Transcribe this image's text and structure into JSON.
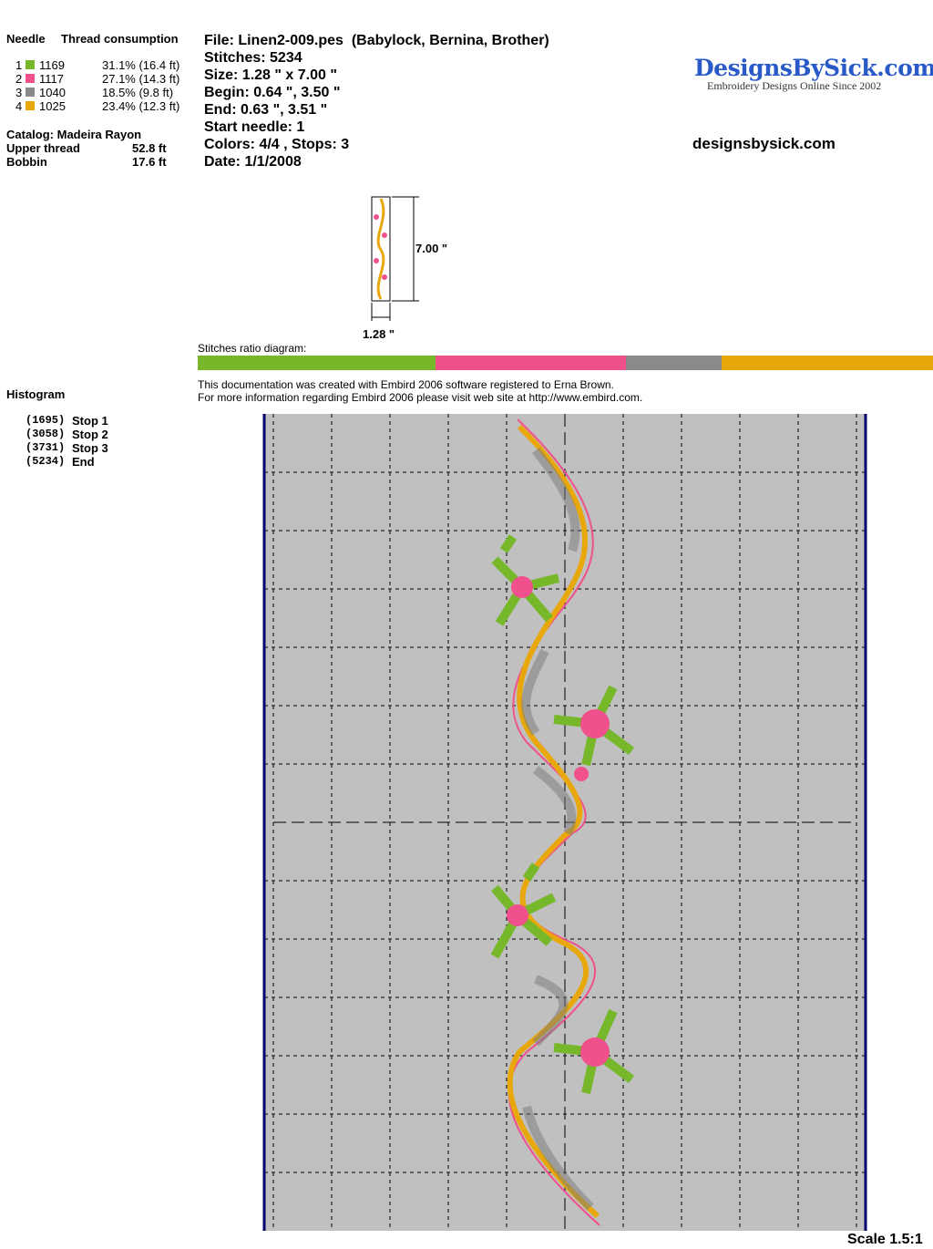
{
  "threads": {
    "header": [
      "Needle",
      "Thread consumption"
    ],
    "rows": [
      {
        "needle": 1,
        "color": "#76b82a",
        "code": "1169",
        "usage": "31.1% (16.4 ft)"
      },
      {
        "needle": 2,
        "color": "#f0508c",
        "code": "1117",
        "usage": "27.1% (14.3 ft)"
      },
      {
        "needle": 3,
        "color": "#8a8a8a",
        "code": "1040",
        "usage": "18.5% (9.8 ft)"
      },
      {
        "needle": 4,
        "color": "#e8a80c",
        "code": "1025",
        "usage": "23.4% (12.3 ft)"
      }
    ]
  },
  "catalog": "Catalog: Madeira Rayon",
  "totals": [
    {
      "label": "Upper thread",
      "value": "52.8 ft"
    },
    {
      "label": "Bobbin",
      "value": "17.6 ft"
    }
  ],
  "histogram": {
    "title": "Histogram",
    "stops": [
      {
        "count": "(1695)",
        "label": "Stop 1"
      },
      {
        "count": "(3058)",
        "label": "Stop 2"
      },
      {
        "count": "(3731)",
        "label": "Stop 3"
      },
      {
        "count": "(5234)",
        "label": "End"
      }
    ]
  },
  "file_info": [
    "File: Linen2-009.pes  (Babylock, Bernina, Brother)",
    "Stitches: 5234",
    "Size: 1.28 \" x 7.00 \"",
    "Begin: 0.64 \", 3.50 \"",
    "End: 0.63 \", 3.51 \"",
    "Start needle: 1",
    "Colors: 4/4 , Stops: 3",
    "Date: 1/1/2008"
  ],
  "logo": {
    "name": "DesignsBySick.com",
    "tagline": "Embroidery Designs Online Since 2002"
  },
  "website": "designsbysick.com",
  "preview": {
    "height": "7.00 \"",
    "width": "1.28 \""
  },
  "ratio": {
    "label": "Stitches ratio diagram:",
    "segments": [
      {
        "color": "#76b82a",
        "value": 32.3
      },
      {
        "color": "#f0508c",
        "value": 26.0
      },
      {
        "color": "#8a8a8a",
        "value": 12.9
      },
      {
        "color": "#e8a80c",
        "value": 28.8
      }
    ]
  },
  "notes": [
    "This documentation was created with Embird 2006 software registered to Erna Brown.",
    "For more information regarding Embird 2006 please visit web site at http://www.embird.com."
  ],
  "scale": "Scale 1.5:1"
}
